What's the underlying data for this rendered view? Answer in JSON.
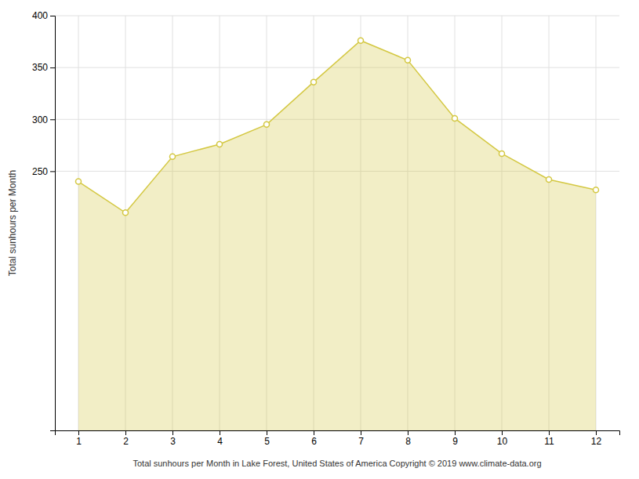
{
  "chart_data": {
    "type": "area",
    "x": [
      1,
      2,
      3,
      4,
      5,
      6,
      7,
      8,
      9,
      10,
      11,
      12
    ],
    "values": [
      240,
      210,
      264,
      276,
      295,
      336,
      376,
      357,
      301,
      267,
      242,
      232
    ],
    "xlabel": "Total sunhours per Month in Lake Forest, United States of America Copyright © 2019 www.climate-data.org",
    "ylabel": "Total sunhours per Month",
    "xlim": [
      0.5,
      12.5
    ],
    "ylim": [
      0,
      400
    ],
    "xticks": [
      1,
      2,
      3,
      4,
      5,
      6,
      7,
      8,
      9,
      10,
      11,
      12
    ],
    "yticks": [
      250,
      300,
      350,
      400
    ],
    "grid": true,
    "color": "#D4C843",
    "marker": "circle"
  }
}
